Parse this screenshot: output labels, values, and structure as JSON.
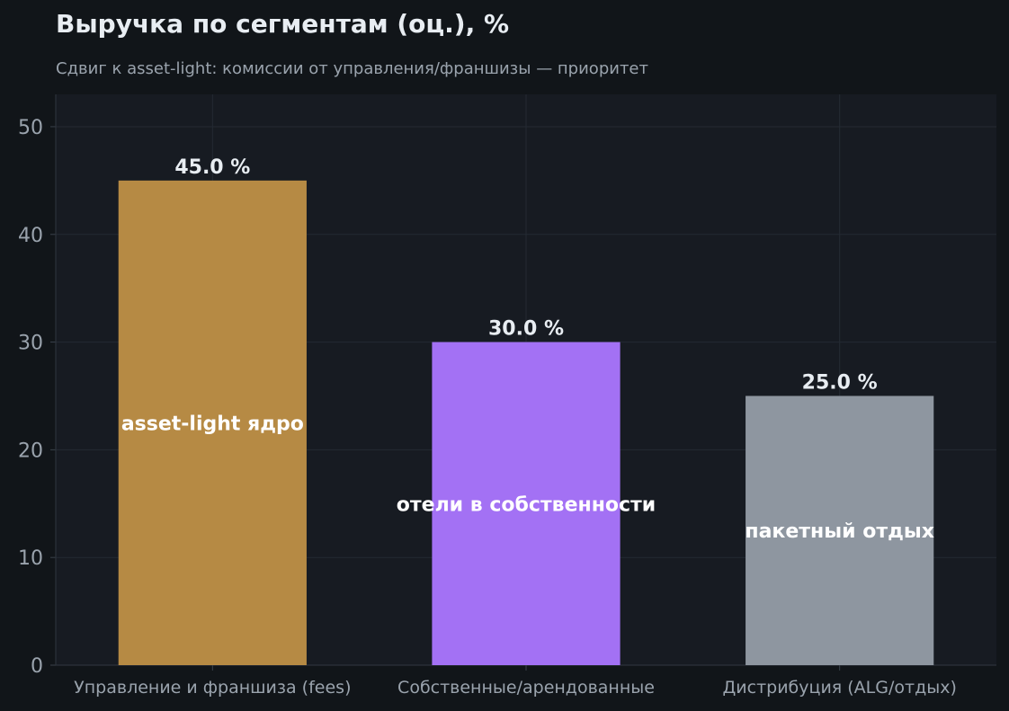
{
  "chart_data": {
    "type": "bar",
    "title": "Выручка по сегментам (оц.), %",
    "subtitle": "Сдвиг к asset-light: комиссии от управления/франшизы — приоритет",
    "xlabel": "",
    "ylabel": "",
    "categories": [
      "Управление и франшиза (fees)",
      "Собственные/арендованные",
      "Дистрибуция (ALG/отдых)"
    ],
    "values": [
      45.0,
      30.0,
      25.0
    ],
    "value_labels": [
      "45.0 %",
      "30.0 %",
      "25.0 %"
    ],
    "bar_annotations": [
      "asset-light ядро",
      "отели в собственности",
      "пакетный отдых"
    ],
    "bar_colors": [
      "#b68a44",
      "#a371f4",
      "#8e96a0"
    ],
    "ylim": [
      0,
      53
    ],
    "yticks": [
      0,
      10,
      20,
      30,
      40,
      50
    ],
    "grid": true,
    "colors": {
      "background": "#111519",
      "plot_background": "#171b22",
      "grid": "#242a33",
      "tick_text": "#9aa3ad",
      "label_text": "#e8edf2"
    }
  }
}
